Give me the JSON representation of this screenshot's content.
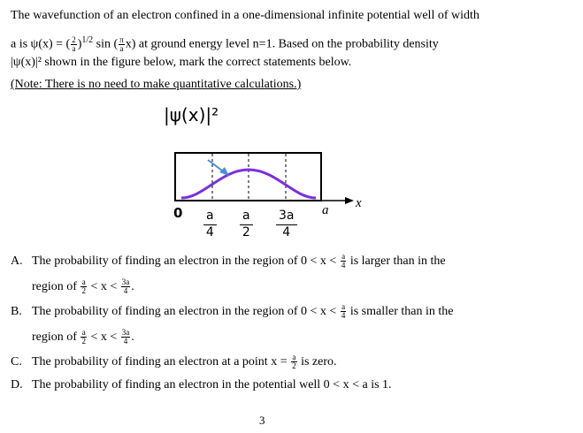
{
  "question": {
    "lines": [
      [
        "The wavefunction of an electron confined in a one-dimensional infinite potential well of width"
      ],
      [
        "a is ψ(x) = (",
        {
          "num": "2",
          "den": "a"
        },
        ")",
        {
          "sup": "1/2"
        },
        " sin (",
        {
          "num": "π",
          "den": "a"
        },
        "x) at ground energy level n=1. Based on the probability density"
      ],
      [
        "|ψ(x)|² shown in the figure below, mark the correct statements below."
      ]
    ],
    "note": "(Note: There is no need to make quantitative calculations.)"
  },
  "figure": {
    "label": "|ψ(x)|²",
    "origin": "0",
    "ticks": [
      {
        "num": "a",
        "den": "4"
      },
      {
        "num": "a",
        "den": "2"
      },
      {
        "num": "3a",
        "den": "4"
      }
    ],
    "end": "a",
    "axis": "x"
  },
  "options": [
    {
      "letter": "A.",
      "lines": [
        [
          "The probability of finding an electron in the region of 0 < x < ",
          {
            "num": "a",
            "den": "4"
          },
          " is larger than in the"
        ],
        [
          "region of ",
          {
            "num": "a",
            "den": "2"
          },
          " < x < ",
          {
            "num": "3a",
            "den": "4"
          },
          "."
        ]
      ]
    },
    {
      "letter": "B.",
      "lines": [
        [
          "The probability of finding an electron in the region of 0 < x < ",
          {
            "num": "a",
            "den": "4"
          },
          " is smaller than in the"
        ],
        [
          "region of ",
          {
            "num": "a",
            "den": "2"
          },
          " < x < ",
          {
            "num": "3a",
            "den": "4"
          },
          "."
        ]
      ]
    },
    {
      "letter": "C.",
      "lines": [
        [
          "The probability of finding an electron at a point x = ",
          {
            "num": "a",
            "den": "2"
          },
          " is zero."
        ]
      ]
    },
    {
      "letter": "D.",
      "lines": [
        [
          "The probability of finding an electron in the potential well 0 < x < a  is 1."
        ]
      ]
    }
  ],
  "page_number": "3"
}
